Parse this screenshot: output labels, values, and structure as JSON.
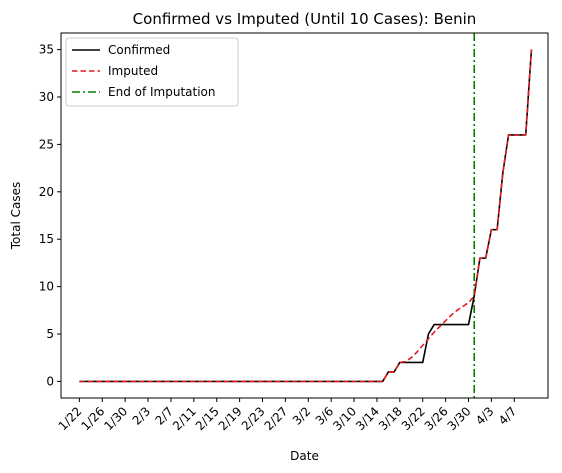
{
  "chart_data": {
    "type": "line",
    "title": "Confirmed vs Imputed (Until 10 Cases): Benin",
    "xlabel": "Date",
    "ylabel": "Total Cases",
    "ylim": [
      -1.75,
      36.75
    ],
    "y_ticks": [
      0,
      5,
      10,
      15,
      20,
      25,
      30,
      35
    ],
    "x_ticks": [
      "1/22",
      "1/26",
      "1/30",
      "2/3",
      "2/7",
      "2/11",
      "2/15",
      "2/19",
      "2/23",
      "2/27",
      "3/2",
      "3/6",
      "3/10",
      "3/14",
      "3/18",
      "3/22",
      "3/26",
      "3/30",
      "4/3",
      "4/7"
    ],
    "grid": false,
    "legend_position": "top-left",
    "x_start": "1/22",
    "series": [
      {
        "name": "Confirmed",
        "color": "#000000",
        "style": "solid",
        "values": [
          0,
          0,
          0,
          0,
          0,
          0,
          0,
          0,
          0,
          0,
          0,
          0,
          0,
          0,
          0,
          0,
          0,
          0,
          0,
          0,
          0,
          0,
          0,
          0,
          0,
          0,
          0,
          0,
          0,
          0,
          0,
          0,
          0,
          0,
          0,
          0,
          0,
          0,
          0,
          0,
          0,
          0,
          0,
          0,
          0,
          0,
          0,
          0,
          0,
          0,
          0,
          0,
          0,
          0,
          1,
          1,
          2,
          2,
          2,
          2,
          2,
          5,
          6,
          6,
          6,
          6,
          6,
          6,
          6,
          9,
          13,
          13,
          16,
          16,
          22,
          26,
          26,
          26,
          26,
          35
        ]
      },
      {
        "name": "Imputed",
        "color": "#e41a1c",
        "style": "dashed",
        "values": [
          0,
          0,
          0,
          0,
          0,
          0,
          0,
          0,
          0,
          0,
          0,
          0,
          0,
          0,
          0,
          0,
          0,
          0,
          0,
          0,
          0,
          0,
          0,
          0,
          0,
          0,
          0,
          0,
          0,
          0,
          0,
          0,
          0,
          0,
          0,
          0,
          0,
          0,
          0,
          0,
          0,
          0,
          0,
          0,
          0,
          0,
          0,
          0,
          0,
          0,
          0,
          0,
          0,
          0,
          1,
          1,
          2,
          2.1,
          2.5,
          3.1,
          3.8,
          4.5,
          5.2,
          5.8,
          6.4,
          7,
          7.5,
          7.9,
          8.3,
          9,
          13,
          13,
          16,
          16,
          22,
          26,
          26,
          26,
          26,
          35
        ]
      }
    ],
    "markers": [
      {
        "name": "End of Imputation",
        "color": "#008000",
        "style": "dashdot",
        "x": "3/31"
      }
    ]
  }
}
